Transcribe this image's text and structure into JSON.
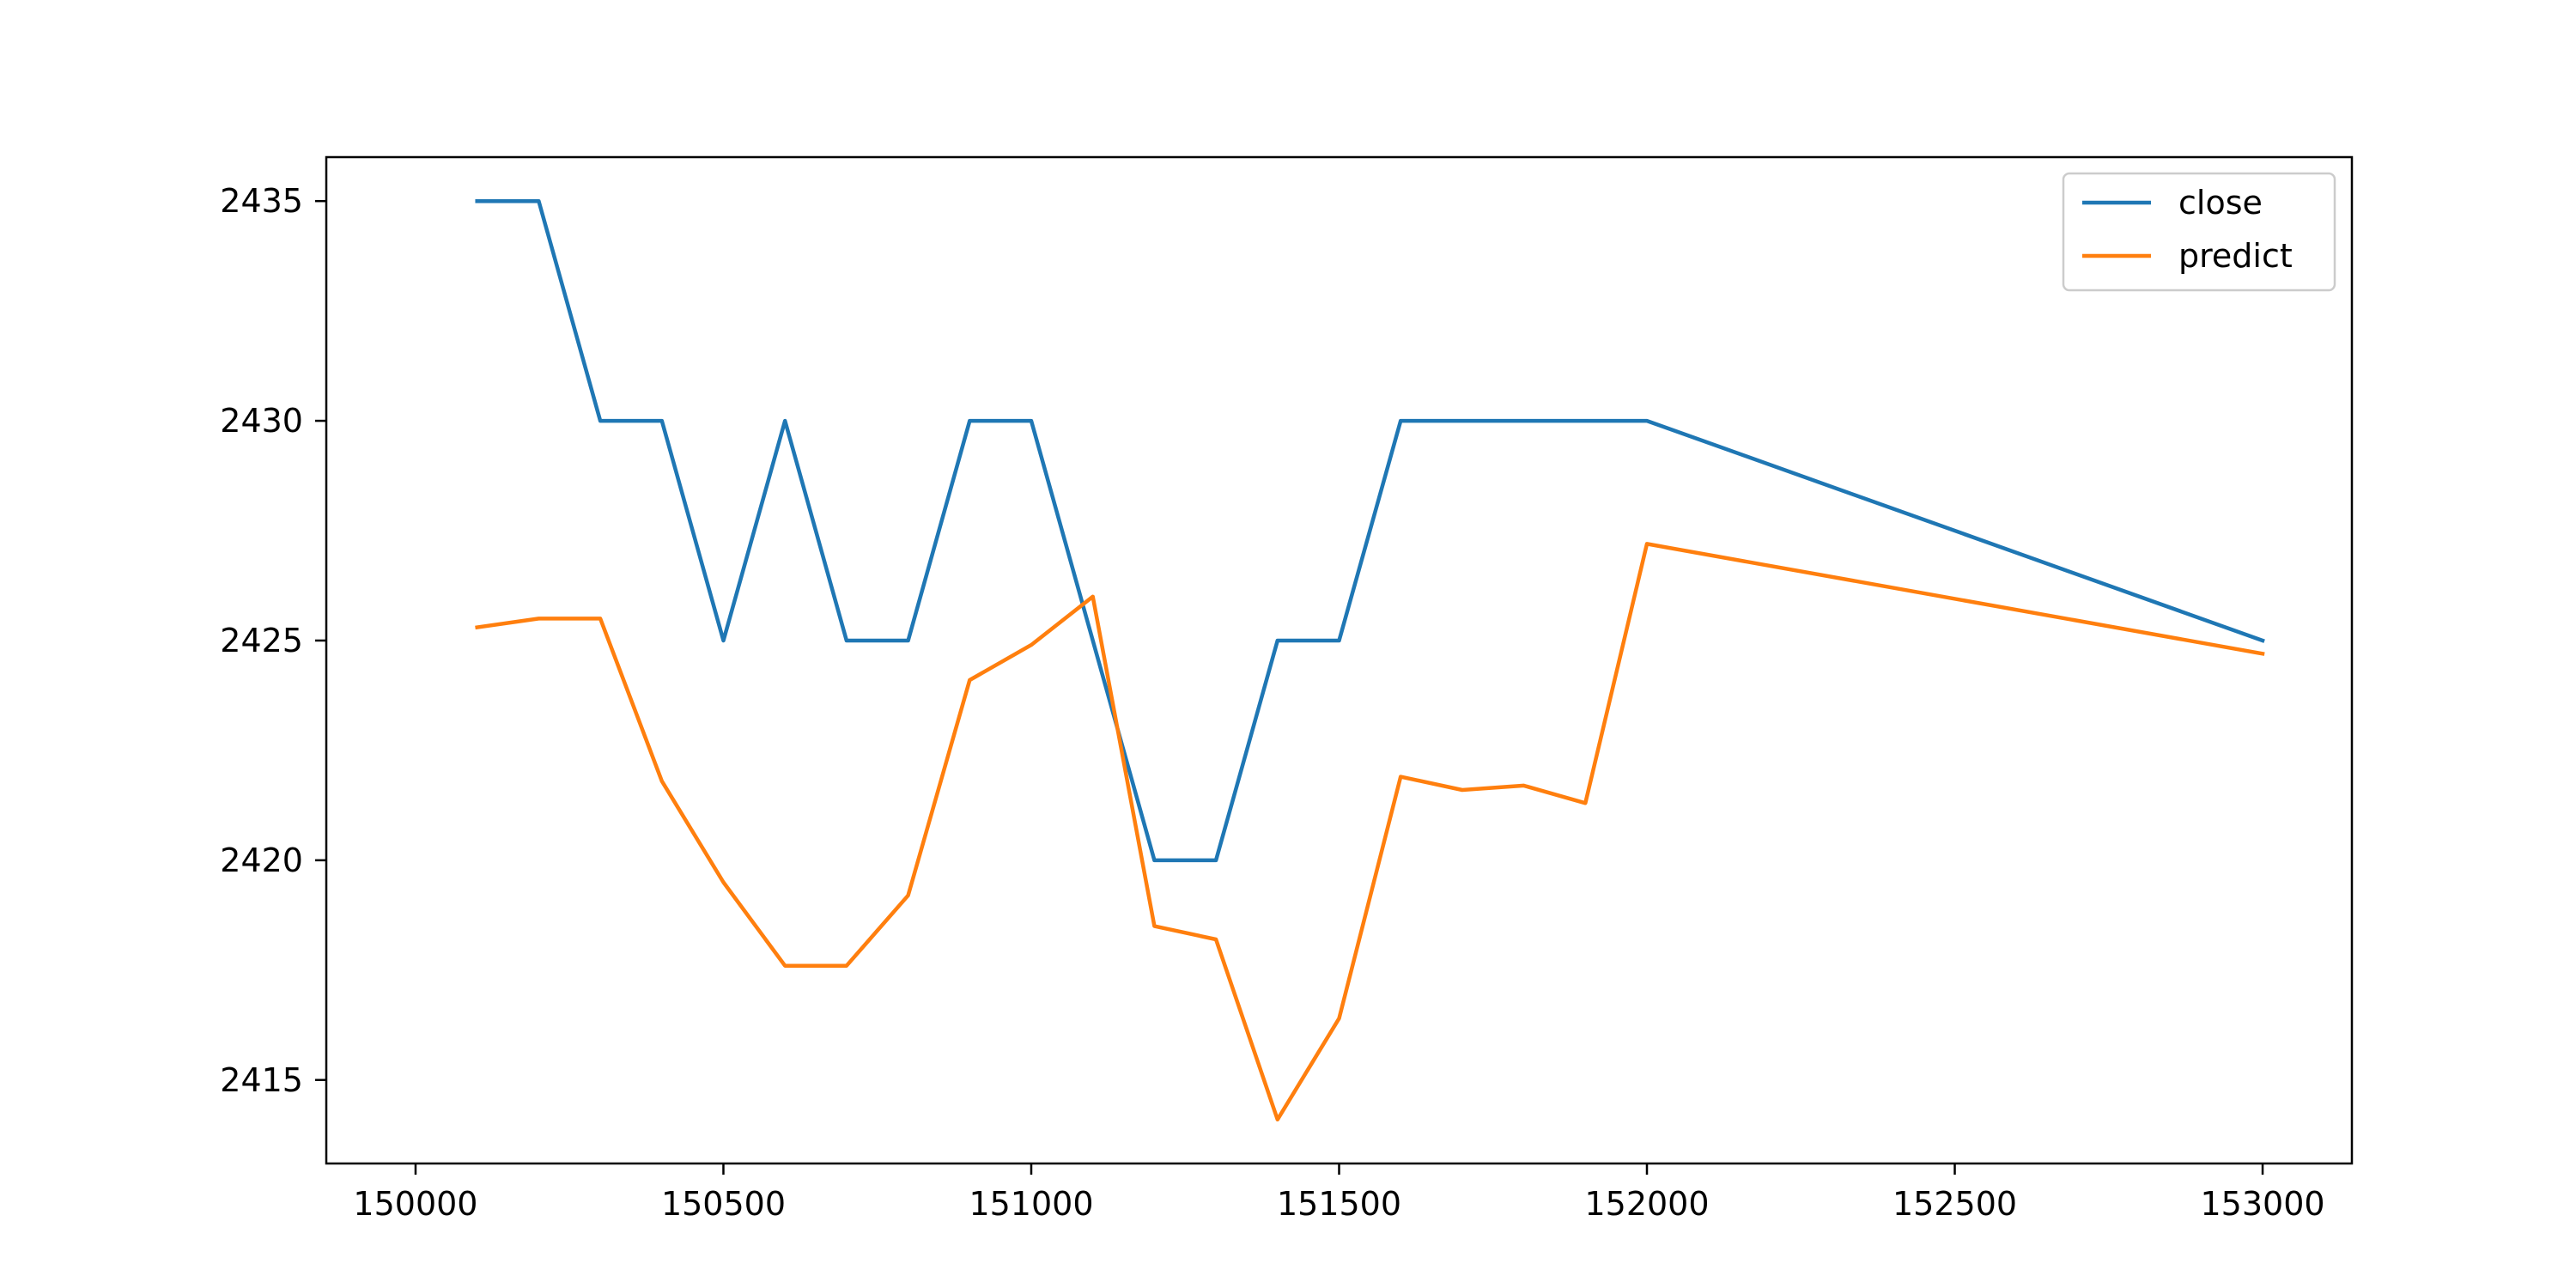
{
  "chart_data": {
    "type": "line",
    "title": "",
    "xlabel": "",
    "ylabel": "",
    "xlim": [
      149855,
      153145
    ],
    "ylim": [
      2413.1,
      2436.0
    ],
    "xticks": [
      150000,
      150500,
      151000,
      151500,
      152000,
      152500,
      153000
    ],
    "yticks": [
      2415,
      2420,
      2425,
      2430,
      2435
    ],
    "grid": false,
    "legend": "top-right",
    "series": [
      {
        "name": "close",
        "color": "#1f77b4",
        "x": [
          150100,
          150200,
          150300,
          150400,
          150500,
          150600,
          150700,
          150800,
          150900,
          151000,
          151100,
          151200,
          151300,
          151400,
          151500,
          151600,
          151700,
          151800,
          151900,
          152000,
          153000
        ],
        "y": [
          2435,
          2435,
          2430,
          2430,
          2425,
          2430,
          2425,
          2425,
          2430,
          2430,
          2425,
          2420,
          2420,
          2425,
          2425,
          2430,
          2430,
          2430,
          2430,
          2430,
          2425
        ]
      },
      {
        "name": "predict",
        "color": "#ff7f0e",
        "x": [
          150100,
          150200,
          150300,
          150400,
          150500,
          150600,
          150700,
          150800,
          150900,
          151000,
          151100,
          151200,
          151300,
          151400,
          151500,
          151600,
          151700,
          151800,
          151900,
          152000,
          153000
        ],
        "y": [
          2425.3,
          2425.5,
          2425.5,
          2421.8,
          2419.5,
          2417.6,
          2417.6,
          2419.2,
          2424.1,
          2424.9,
          2426.0,
          2418.5,
          2418.2,
          2414.1,
          2416.4,
          2421.9,
          2421.6,
          2421.7,
          2421.3,
          2427.2,
          2424.7
        ]
      }
    ]
  }
}
